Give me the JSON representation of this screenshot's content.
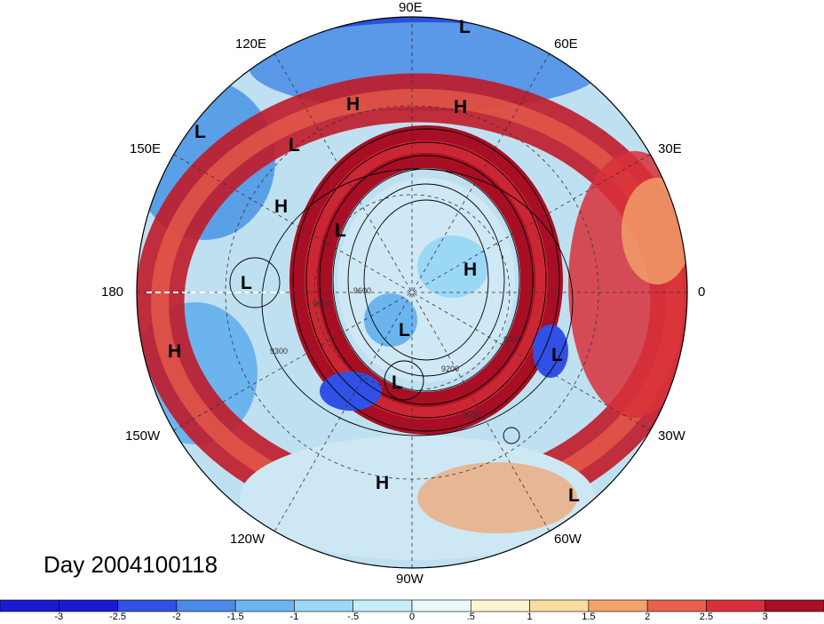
{
  "map": {
    "projection": "north-polar-stereographic",
    "day_label": "Day 2004100118",
    "longitude_labels": [
      {
        "id": "90E",
        "text": "90E"
      },
      {
        "id": "60E",
        "text": "60E"
      },
      {
        "id": "120E",
        "text": "120E"
      },
      {
        "id": "30E",
        "text": "30E"
      },
      {
        "id": "150E",
        "text": "150E"
      },
      {
        "id": "0",
        "text": "0"
      },
      {
        "id": "180",
        "text": "180"
      },
      {
        "id": "30W",
        "text": "30W"
      },
      {
        "id": "150W",
        "text": "150W"
      },
      {
        "id": "60W",
        "text": "60W"
      },
      {
        "id": "120W",
        "text": "120W"
      },
      {
        "id": "90W",
        "text": "90W"
      }
    ],
    "contour_labels": [
      "9600",
      "9300",
      "9600",
      "9300",
      "9200",
      "9600"
    ],
    "pressure_centers": [
      {
        "type": "L",
        "near": "90E"
      },
      {
        "type": "H",
        "near": "105E"
      },
      {
        "type": "H",
        "near": "75E"
      },
      {
        "type": "L",
        "near": "150E"
      },
      {
        "type": "L",
        "near": "140E"
      },
      {
        "type": "H",
        "near": "155E"
      },
      {
        "type": "L",
        "near": "160E"
      },
      {
        "type": "L",
        "near": "180"
      },
      {
        "type": "H",
        "near": "20E"
      },
      {
        "type": "L",
        "near": "pole"
      },
      {
        "type": "H",
        "near": "160W"
      },
      {
        "type": "L",
        "near": "75W"
      },
      {
        "type": "L",
        "near": "15W"
      },
      {
        "type": "H",
        "near": "95W"
      },
      {
        "type": "L",
        "near": "45W"
      }
    ]
  },
  "colorbar": {
    "tick_labels": [
      "-3",
      "-2.5",
      "-2",
      "-1.5",
      "-1",
      "-.5",
      "0",
      ".5",
      "1",
      "1.5",
      "2",
      "2.5",
      "3"
    ],
    "colors": [
      "#1a1ad2",
      "#3050e6",
      "#4a8ae8",
      "#6cb4ee",
      "#9ad8f6",
      "#c6eef9",
      "#eaf8fc",
      "#fdf5cf",
      "#f9dc9e",
      "#f2a36c",
      "#e9614c",
      "#d8303a",
      "#a80e24"
    ]
  }
}
